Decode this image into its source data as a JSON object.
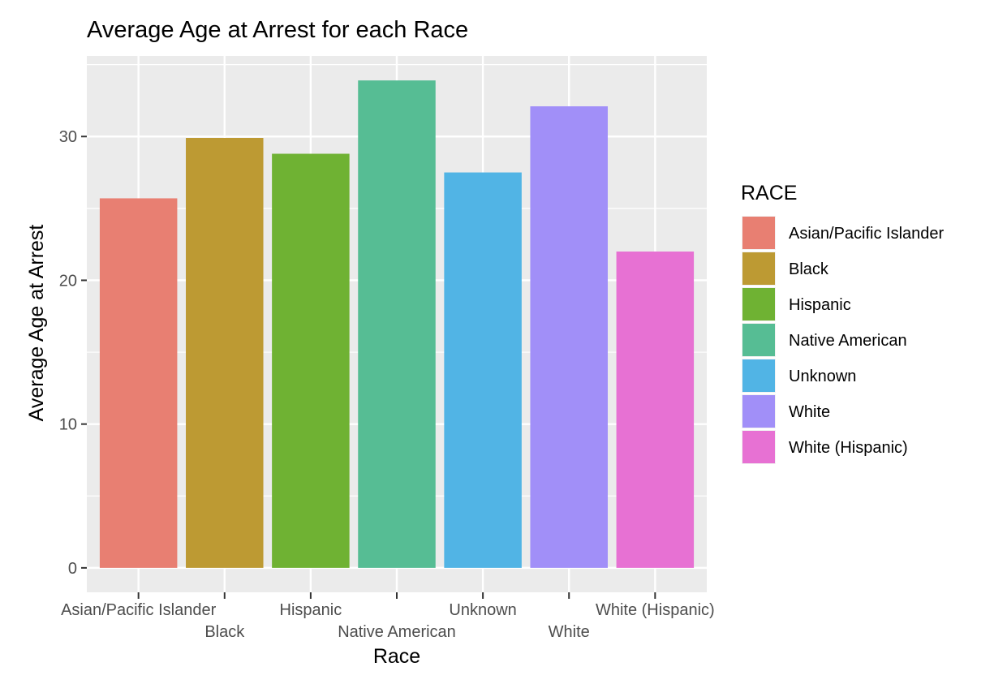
{
  "chart_data": {
    "type": "bar",
    "title": "Average Age at Arrest for each Race",
    "xlabel": "Race",
    "ylabel": "Average Age at Arrest",
    "categories": [
      "Asian/Pacific Islander",
      "Black",
      "Hispanic",
      "Native American",
      "Unknown",
      "White",
      "White (Hispanic)"
    ],
    "values": [
      25.7,
      29.9,
      28.8,
      33.9,
      27.5,
      32.1,
      22.0
    ],
    "colors": [
      "#E87F72",
      "#BD9A33",
      "#6FB233",
      "#56BD94",
      "#51B4E5",
      "#A18FF8",
      "#E771D3"
    ],
    "ylim": [
      -1.7,
      35.6
    ],
    "yticks": [
      0,
      10,
      20,
      30
    ],
    "grid": true,
    "panel_background": "#EBEBEB",
    "legend": {
      "title": "RACE",
      "position": "right",
      "entries": [
        "Asian/Pacific Islander",
        "Black",
        "Hispanic",
        "Native American",
        "Unknown",
        "White",
        "White (Hispanic)"
      ]
    }
  }
}
